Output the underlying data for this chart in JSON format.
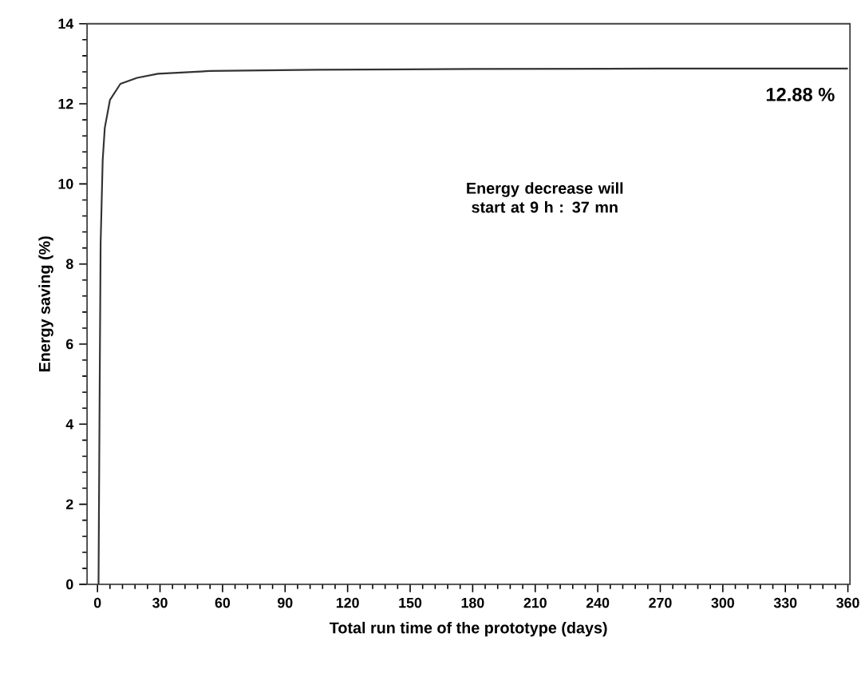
{
  "chart_data": {
    "type": "line",
    "xlabel": "Total run time of the prototype (days)",
    "ylabel": "Energy saving (%)",
    "xlim": [
      -5,
      361
    ],
    "ylim": [
      0,
      14
    ],
    "xticks": [
      0,
      30,
      60,
      90,
      120,
      150,
      180,
      210,
      240,
      270,
      300,
      330,
      360
    ],
    "yticks": [
      0,
      2,
      4,
      6,
      8,
      10,
      12,
      14
    ],
    "series": [
      {
        "color": "#333333",
        "x": [
          0.5,
          1.0,
          1.5,
          2.5,
          3.5,
          6,
          11,
          19,
          29,
          54,
          105,
          180,
          270,
          360
        ],
        "values": [
          0,
          4.5,
          8.5,
          10.6,
          11.4,
          12.1,
          12.5,
          12.65,
          12.75,
          12.82,
          12.85,
          12.87,
          12.88,
          12.88
        ]
      }
    ],
    "annotations": [
      {
        "text": "12.88 %",
        "x": 360,
        "y": 12.88
      },
      "Energy decrease will start at 9 h : 37 mn"
    ],
    "marker": "none",
    "line_style": "solid"
  }
}
